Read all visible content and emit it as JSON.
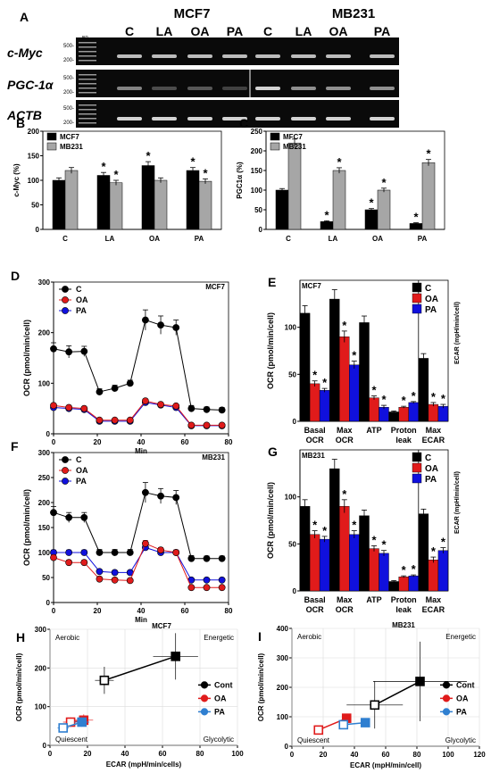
{
  "colors": {
    "black": "#000000",
    "grey": "#a6a6a6",
    "red": "#e01b1b",
    "blue": "#1010dd",
    "lightblue": "#2f7fd0",
    "gel": "#0a0a0a",
    "band": "#e8e8e8"
  },
  "panelA": {
    "label": "A",
    "groups": [
      {
        "name": "MCF7"
      },
      {
        "name": "MB231"
      }
    ],
    "lanes": [
      "C",
      "LA",
      "OA",
      "PA",
      "C",
      "LA",
      "OA",
      "PA"
    ],
    "genes": [
      {
        "name": "c-Myc",
        "ladder_top": "500-",
        "ladder_bot": "200-",
        "bp": "BP",
        "intensity": [
          0.8,
          0.8,
          0.8,
          0.8,
          0.8,
          0.8,
          0.8,
          0.8
        ]
      },
      {
        "name": "PGC-1α",
        "ladder_top": "500-",
        "ladder_bot": "200-",
        "bp": "",
        "intensity": [
          0.55,
          0.3,
          0.35,
          0.25,
          0.9,
          0.6,
          0.6,
          0.6
        ]
      },
      {
        "name": "ACTB",
        "ladder_top": "500-",
        "ladder_bot": "200-",
        "bp": "",
        "intensity": [
          0.9,
          0.9,
          0.9,
          0.9,
          0.9,
          0.9,
          0.9,
          0.9
        ]
      }
    ]
  },
  "chart_data": [
    {
      "id": "B",
      "type": "bar",
      "label": "B",
      "ylabel": "c-Myc (%)",
      "ylim": [
        0,
        200
      ],
      "yticks": [
        0,
        50,
        100,
        150,
        200
      ],
      "categories": [
        "C",
        "LA",
        "OA",
        "PA"
      ],
      "series": [
        {
          "name": "MCF7",
          "color": "#000000",
          "values": [
            100,
            110,
            130,
            120
          ],
          "err": [
            5,
            6,
            8,
            6
          ],
          "star": [
            false,
            true,
            true,
            true
          ]
        },
        {
          "name": "MB231",
          "color": "#a6a6a6",
          "values": [
            120,
            95,
            100,
            98
          ],
          "err": [
            6,
            5,
            5,
            5
          ],
          "star": [
            false,
            true,
            false,
            true
          ]
        }
      ]
    },
    {
      "id": "C",
      "type": "bar",
      "label": "C",
      "ylabel": "PGC1α (%)",
      "ylim": [
        0,
        250
      ],
      "yticks": [
        0,
        50,
        100,
        150,
        200,
        250
      ],
      "categories": [
        "C",
        "LA",
        "OA",
        "PA"
      ],
      "series": [
        {
          "name": "MFC7",
          "color": "#000000",
          "values": [
            100,
            20,
            50,
            15
          ],
          "err": [
            4,
            2,
            3,
            2
          ],
          "star": [
            false,
            true,
            true,
            true
          ]
        },
        {
          "name": "MB231",
          "color": "#a6a6a6",
          "values": [
            220,
            150,
            100,
            170
          ],
          "err": [
            10,
            7,
            5,
            8
          ],
          "star": [
            false,
            true,
            true,
            true
          ]
        }
      ]
    },
    {
      "id": "D",
      "type": "line",
      "label": "D",
      "title": "MCF7",
      "xlabel": "Min",
      "ylabel": "OCR (pmol/min/cell)",
      "xlim": [
        0,
        80
      ],
      "ylim": [
        0,
        300
      ],
      "xticks": [
        0,
        20,
        40,
        60,
        80
      ],
      "yticks": [
        0,
        100,
        200,
        300
      ],
      "x": [
        0,
        7,
        14,
        21,
        28,
        35,
        42,
        49,
        56,
        63,
        70,
        77
      ],
      "series": [
        {
          "name": "C",
          "color": "#000000",
          "values": [
            168,
            162,
            163,
            83,
            90,
            100,
            225,
            215,
            210,
            50,
            48,
            47
          ],
          "err": [
            12,
            12,
            10,
            6,
            6,
            6,
            20,
            18,
            15,
            6,
            5,
            5
          ]
        },
        {
          "name": "OA",
          "color": "#e01b1b",
          "values": [
            56,
            52,
            50,
            27,
            27,
            27,
            65,
            58,
            55,
            17,
            17,
            17
          ],
          "err": [
            3,
            3,
            3,
            2,
            2,
            2,
            4,
            4,
            3,
            2,
            2,
            2
          ]
        },
        {
          "name": "PA",
          "color": "#1010dd",
          "values": [
            52,
            50,
            48,
            25,
            25,
            25,
            62,
            57,
            52,
            16,
            16,
            16
          ],
          "err": [
            3,
            3,
            3,
            2,
            2,
            2,
            4,
            4,
            3,
            2,
            2,
            2
          ]
        }
      ]
    },
    {
      "id": "E",
      "type": "bar",
      "label": "E",
      "title": "MCF7",
      "ylabel": "OCR (pmol/min/cell)",
      "ylabel2": "ECAR (mpH/min/cell)",
      "ylim": [
        0,
        150
      ],
      "yticks": [
        0,
        50,
        100
      ],
      "categories": [
        "Basal OCR",
        "Max OCR",
        "ATP",
        "Proton leak",
        "Max ECAR"
      ],
      "series": [
        {
          "name": "C",
          "color": "#000000",
          "values": [
            115,
            130,
            105,
            10,
            67
          ],
          "err": [
            8,
            10,
            7,
            1,
            5
          ],
          "star": [
            false,
            false,
            false,
            false,
            false
          ]
        },
        {
          "name": "OA",
          "color": "#e01b1b",
          "values": [
            40,
            90,
            25,
            15,
            18
          ],
          "err": [
            3,
            6,
            2,
            1,
            2
          ],
          "star": [
            true,
            true,
            true,
            true,
            true
          ]
        },
        {
          "name": "PA",
          "color": "#1010dd",
          "values": [
            33,
            60,
            15,
            20,
            16
          ],
          "err": [
            2,
            4,
            2,
            1,
            2
          ],
          "star": [
            true,
            true,
            true,
            true,
            true
          ]
        }
      ]
    },
    {
      "id": "F",
      "type": "line",
      "label": "F",
      "title": "MB231",
      "xlabel": "Min",
      "ylabel": "OCR (pmol/min/cell)",
      "xlim": [
        0,
        80
      ],
      "ylim": [
        0,
        300
      ],
      "xticks": [
        0,
        20,
        40,
        60,
        80
      ],
      "yticks": [
        0,
        50,
        100,
        150,
        200,
        250,
        300
      ],
      "x": [
        0,
        7,
        14,
        21,
        28,
        35,
        42,
        49,
        56,
        63,
        70,
        77
      ],
      "series": [
        {
          "name": "C",
          "color": "#000000",
          "values": [
            180,
            170,
            170,
            100,
            100,
            100,
            220,
            213,
            210,
            88,
            88,
            88
          ],
          "err": [
            12,
            10,
            10,
            6,
            6,
            6,
            20,
            15,
            14,
            6,
            5,
            5
          ]
        },
        {
          "name": "OA",
          "color": "#e01b1b",
          "values": [
            90,
            80,
            80,
            47,
            45,
            44,
            118,
            105,
            100,
            30,
            30,
            30
          ],
          "err": [
            5,
            5,
            5,
            4,
            4,
            4,
            6,
            5,
            5,
            3,
            3,
            3
          ]
        },
        {
          "name": "PA",
          "color": "#1010dd",
          "values": [
            100,
            100,
            100,
            62,
            60,
            60,
            110,
            100,
            100,
            45,
            45,
            45
          ],
          "err": [
            5,
            5,
            5,
            4,
            4,
            4,
            6,
            5,
            5,
            3,
            3,
            3
          ]
        }
      ]
    },
    {
      "id": "G",
      "type": "bar",
      "label": "G",
      "title": "MB231",
      "ylabel": "OCR (pmol/min/cell)",
      "ylabel2": "ECAR (mpH/min/cell)",
      "ylim": [
        0,
        150
      ],
      "yticks": [
        0,
        50,
        100
      ],
      "categories": [
        "Basal OCR",
        "Max OCR",
        "ATP",
        "Proton leak",
        "Max ECAR"
      ],
      "series": [
        {
          "name": "C",
          "color": "#000000",
          "values": [
            90,
            130,
            80,
            10,
            82
          ],
          "err": [
            7,
            10,
            6,
            1,
            5
          ],
          "star": [
            false,
            false,
            false,
            false,
            false
          ]
        },
        {
          "name": "OA",
          "color": "#e01b1b",
          "values": [
            60,
            90,
            45,
            15,
            33
          ],
          "err": [
            4,
            7,
            3,
            1,
            3
          ],
          "star": [
            true,
            true,
            true,
            true,
            true
          ]
        },
        {
          "name": "PA",
          "color": "#1010dd",
          "values": [
            55,
            60,
            40,
            16,
            43
          ],
          "err": [
            3,
            4,
            3,
            1,
            3
          ],
          "star": [
            true,
            true,
            true,
            true,
            true
          ]
        }
      ]
    },
    {
      "id": "H",
      "type": "scatter",
      "label": "H",
      "title": "MCF7",
      "xlabel": "ECAR (mpH/min/cells)",
      "ylabel": "OCR (pmol/min/cell)",
      "xlim": [
        0,
        100
      ],
      "ylim": [
        0,
        300
      ],
      "xticks": [
        0,
        20,
        40,
        60,
        80,
        100
      ],
      "yticks": [
        0,
        100,
        200,
        300
      ],
      "corners": {
        "tl": "Aerobic",
        "tr": "Energetic",
        "bl": "Quiescent",
        "br": "Glycolytic"
      },
      "series": [
        {
          "name": "Cont",
          "color": "#000000",
          "points": [
            [
              29,
              168,
              5,
              35
            ],
            [
              67,
              230,
              12,
              60
            ]
          ]
        },
        {
          "name": "OA",
          "color": "#e01b1b",
          "points": [
            [
              11,
              60,
              4,
              12
            ],
            [
              18,
              65,
              5,
              15
            ]
          ]
        },
        {
          "name": "PA",
          "color": "#2f7fd0",
          "points": [
            [
              7,
              45,
              3,
              10
            ],
            [
              17,
              60,
              4,
              12
            ]
          ]
        }
      ]
    },
    {
      "id": "I",
      "type": "scatter",
      "label": "I",
      "title": "MB231",
      "xlabel": "ECAR (mpH/min/cell)",
      "ylabel": "OCR (pmol/min/cell)",
      "xlim": [
        0,
        120
      ],
      "ylim": [
        0,
        400
      ],
      "xticks": [
        0,
        20,
        40,
        60,
        80,
        100,
        120
      ],
      "yticks": [
        0,
        100,
        200,
        300,
        400
      ],
      "corners": {
        "tl": "Aerobic",
        "tr": "Energetic",
        "bl": "Quiescent",
        "br": "Glycolytic"
      },
      "series": [
        {
          "name": "Cont",
          "color": "#000000",
          "points": [
            [
              53,
              140,
              18,
              80
            ],
            [
              82,
              220,
              30,
              135
            ]
          ]
        },
        {
          "name": "OA",
          "color": "#e01b1b",
          "points": [
            [
              17,
              55,
              3,
              8
            ],
            [
              35,
              95,
              3,
              10
            ]
          ]
        },
        {
          "name": "PA",
          "color": "#2f7fd0",
          "points": [
            [
              33,
              73,
              3,
              8
            ],
            [
              47,
              80,
              3,
              8
            ]
          ]
        }
      ]
    }
  ]
}
